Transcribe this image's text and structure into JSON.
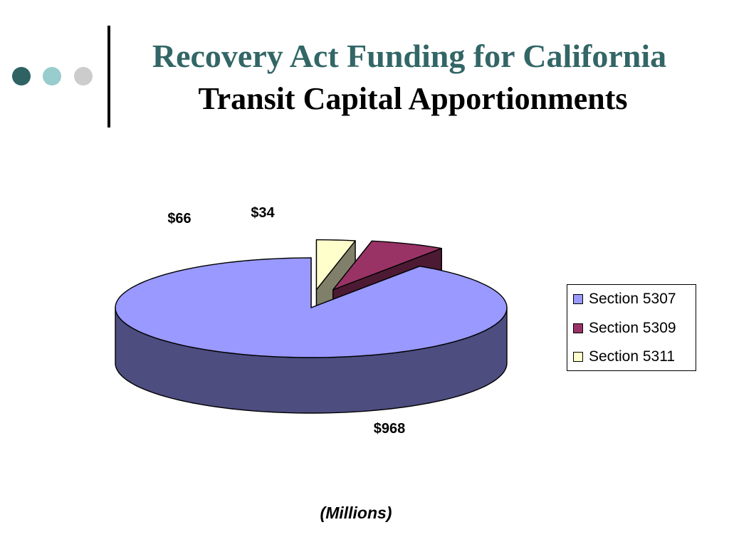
{
  "slide": {
    "title": "Recovery Act Funding for California",
    "subtitle": "Transit Capital Apportionments",
    "note": "(Millions)",
    "colors": {
      "accent": "#336666",
      "dot_dark": "#2e6263",
      "dot_light": "#99cccc",
      "dot_gray": "#cccccc",
      "divider": "#000000"
    }
  },
  "chart_data": {
    "type": "pie",
    "three_d": true,
    "legend_position": "right",
    "series": [
      {
        "name": "Section 5307",
        "value": 968,
        "label": "$968",
        "color": "#9999ff",
        "side_color": "#4d4d80"
      },
      {
        "name": "Section 5309",
        "value": 66,
        "label": "$66",
        "color": "#993366",
        "side_color": "#4d1a33"
      },
      {
        "name": "Section 5311",
        "value": 34,
        "label": "$34",
        "color": "#ffffcc",
        "side_color": "#80806a"
      }
    ]
  }
}
